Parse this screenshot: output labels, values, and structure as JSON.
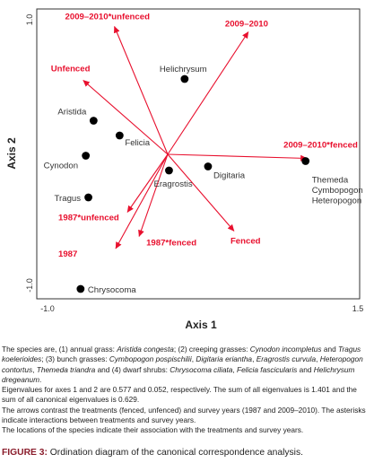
{
  "chart_data": {
    "type": "scatter",
    "xlabel": "Axis 1",
    "ylabel": "Axis 2",
    "xlim": [
      -1.0,
      1.5
    ],
    "ylim": [
      -1.0,
      1.0
    ],
    "x_ticks": [
      {
        "value": -1.0,
        "label": "-1.0"
      },
      {
        "value": 1.5,
        "label": "1.5"
      }
    ],
    "y_ticks": [
      {
        "value": 1.0,
        "label": "1.0"
      },
      {
        "value": -1.0,
        "label": "-1.0"
      }
    ],
    "species": [
      {
        "name": "Helichrysum",
        "x": 0.13,
        "y": 0.56
      },
      {
        "name": "Aristida",
        "x": -0.57,
        "y": 0.25
      },
      {
        "name": "Felicia",
        "x": -0.37,
        "y": 0.14
      },
      {
        "name": "Cynodon",
        "x": -0.63,
        "y": -0.01
      },
      {
        "name": "Eragrostis",
        "x": 0.01,
        "y": -0.12
      },
      {
        "name": "Digitaria",
        "x": 0.31,
        "y": -0.09
      },
      {
        "name": "Themeda\nCymbopogon\nHeteropogon",
        "x": 1.06,
        "y": -0.05
      },
      {
        "name": "Tragus",
        "x": -0.61,
        "y": -0.32
      },
      {
        "name": "Chrysocoma",
        "x": -0.67,
        "y": -1.0
      }
    ],
    "arrows": [
      {
        "name": "2009–2010*unfenced",
        "x": -0.41,
        "y": 0.95
      },
      {
        "name": "2009–2010",
        "x": 0.62,
        "y": 0.91
      },
      {
        "name": "Unfenced",
        "x": -0.65,
        "y": 0.55
      },
      {
        "name": "2009–2010*fenced",
        "x": 1.07,
        "y": -0.03
      },
      {
        "name": "Fenced",
        "x": 0.51,
        "y": -0.57
      },
      {
        "name": "1987*unfenced",
        "x": -0.31,
        "y": -0.43
      },
      {
        "name": "1987*fenced",
        "x": -0.22,
        "y": -0.61
      },
      {
        "name": "1987",
        "x": -0.4,
        "y": -0.7
      }
    ],
    "colors": {
      "arrow": "#e8102e",
      "point": "#000000",
      "axis": "#333333",
      "caption_title": "#8a1c2b"
    }
  },
  "caption": {
    "p1": [
      {
        "t": "The species are, (1) annual grass: ",
        "i": false
      },
      {
        "t": "Aristida congesta",
        "i": true
      },
      {
        "t": "; (2) creeping grasses: ",
        "i": false
      },
      {
        "t": "Cynodon incompletus",
        "i": true
      },
      {
        "t": " and ",
        "i": false
      },
      {
        "t": "Tragus koelerioides",
        "i": true
      },
      {
        "t": "; (3) bunch grasses: ",
        "i": false
      },
      {
        "t": "Cymbopogon pospischilii",
        "i": true
      },
      {
        "t": ", ",
        "i": false
      },
      {
        "t": "Digitaria eriantha",
        "i": true
      },
      {
        "t": ", ",
        "i": false
      },
      {
        "t": "Eragrostis curvula",
        "i": true
      },
      {
        "t": ", ",
        "i": false
      },
      {
        "t": "Heteropogon contortus",
        "i": true
      },
      {
        "t": ", ",
        "i": false
      },
      {
        "t": "Themeda triandra",
        "i": true
      },
      {
        "t": " and (4) dwarf shrubs: ",
        "i": false
      },
      {
        "t": "Chrysocoma ciliata",
        "i": true
      },
      {
        "t": ", ",
        "i": false
      },
      {
        "t": "Felicia fascicularis",
        "i": true
      },
      {
        "t": " and ",
        "i": false
      },
      {
        "t": "Helichrysum dregeanum",
        "i": true
      },
      {
        "t": ".",
        "i": false
      }
    ],
    "p2": "Eigenvalues for axes 1 and 2 are 0.577 and 0.052, respectively. The sum of all eigenvalues is 1.401 and the sum of all canonical eigenvalues is 0.629.",
    "p3": "The arrows contrast the treatments (fenced, unfenced) and survey years (1987 and 2009–2010). The asterisks indicate interactions between treatments and survey years.",
    "p4": "The locations of the species indicate their association with the treatments and survey years.",
    "figure_label": "FIGURE 3:",
    "figure_title": " Ordination diagram of the canonical correspondence analysis."
  }
}
